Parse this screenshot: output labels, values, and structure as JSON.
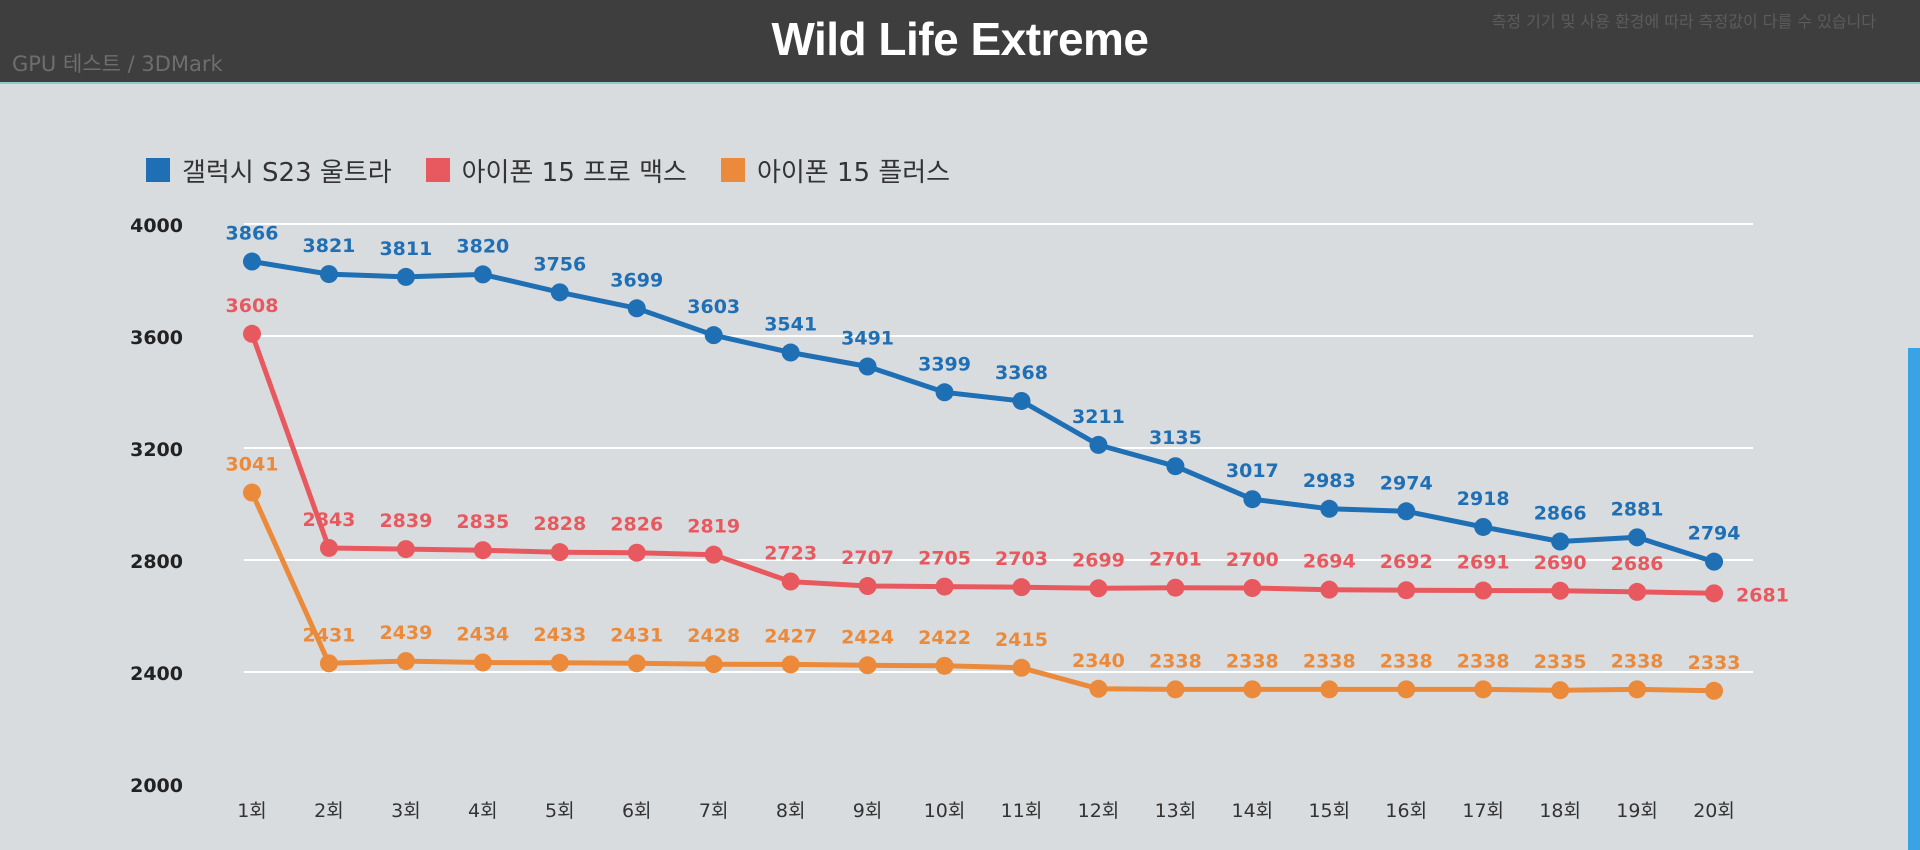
{
  "header": {
    "title": "Wild Life Extreme",
    "subtitle": "GPU 테스트 / 3DMark",
    "notice": "측정 기기 및 사용 환경에 따라 측정값이 다를 수 있습니다"
  },
  "colors": {
    "background": "#d9dcdf",
    "header_bg": "#3e3e3e",
    "s23": "#1f6fb5",
    "iphone_pro_max": "#e8595f",
    "iphone_plus": "#ea8a3a",
    "gridline": "#ffffff",
    "accent_bar": "#3aa3e3"
  },
  "chart_data": {
    "type": "line",
    "title": "Wild Life Extreme",
    "xlabel": "",
    "ylabel": "",
    "categories": [
      "1회",
      "2회",
      "3회",
      "4회",
      "5회",
      "6회",
      "7회",
      "8회",
      "9회",
      "10회",
      "11회",
      "12회",
      "13회",
      "14회",
      "15회",
      "16회",
      "17회",
      "18회",
      "19회",
      "20회"
    ],
    "ylim": [
      2000,
      4000
    ],
    "yticks": [
      2000,
      2400,
      2800,
      3200,
      3600,
      4000
    ],
    "grid": true,
    "legend_position": "top-left",
    "series": [
      {
        "name": "갤럭시 S23 울트라",
        "color": "#1f6fb5",
        "values": [
          3866,
          3821,
          3811,
          3820,
          3756,
          3699,
          3603,
          3541,
          3491,
          3399,
          3368,
          3211,
          3135,
          3017,
          2983,
          2974,
          2918,
          2866,
          2881,
          2794
        ]
      },
      {
        "name": "아이폰 15 프로 맥스",
        "color": "#e8595f",
        "values": [
          3608,
          2843,
          2839,
          2835,
          2828,
          2826,
          2819,
          2723,
          2707,
          2705,
          2703,
          2699,
          2701,
          2700,
          2694,
          2692,
          2691,
          2690,
          2686,
          2681
        ]
      },
      {
        "name": "아이폰 15 플러스",
        "color": "#ea8a3a",
        "values": [
          3041,
          2431,
          2439,
          2434,
          2433,
          2431,
          2428,
          2427,
          2424,
          2422,
          2415,
          2340,
          2338,
          2338,
          2338,
          2338,
          2338,
          2335,
          2338,
          2333
        ]
      }
    ]
  }
}
